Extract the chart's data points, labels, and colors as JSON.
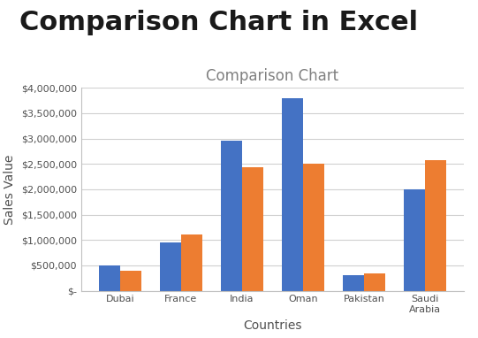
{
  "title_main": "Comparison Chart in Excel",
  "title_chart": "Comparison Chart",
  "xlabel": "Countries",
  "ylabel": "Sales Value",
  "categories": [
    "Dubai",
    "France",
    "India",
    "Oman",
    "Pakistan",
    "Saudi\nArabia"
  ],
  "series1": [
    500000,
    950000,
    2950000,
    3800000,
    300000,
    2000000
  ],
  "series2": [
    390000,
    1100000,
    2430000,
    2500000,
    340000,
    2570000
  ],
  "color1": "#4472C4",
  "color2": "#ED7D31",
  "ylim": [
    0,
    4000000
  ],
  "yticks": [
    0,
    500000,
    1000000,
    1500000,
    2000000,
    2500000,
    3000000,
    3500000,
    4000000
  ],
  "background_main": "#ffffff",
  "background_chart": "#ffffff",
  "grid_color": "#d0d0d0",
  "border_color": "#c0c0c0",
  "title_main_fontsize": 22,
  "title_main_color": "#1a1a1a",
  "title_chart_fontsize": 12,
  "title_chart_color": "#808080",
  "axis_label_fontsize": 10,
  "axis_label_color": "#505050",
  "tick_fontsize": 8,
  "tick_color": "#505050"
}
